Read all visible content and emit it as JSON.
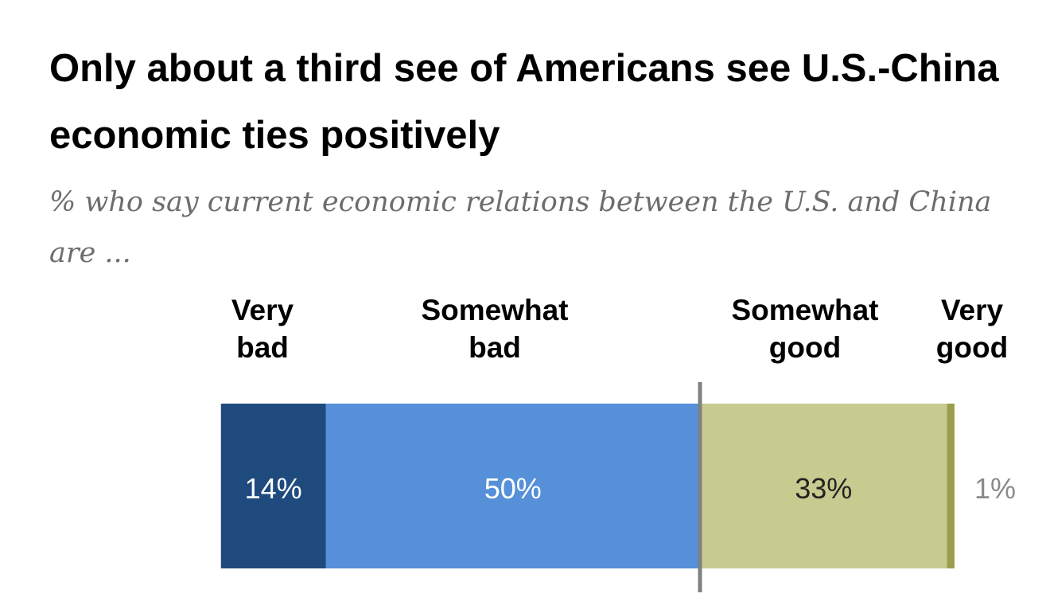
{
  "title": "Only about a third see of Americans see U.S.-China economic ties positively",
  "subtitle": "% who say current economic relations between the U.S. and China are ...",
  "chart_data": {
    "type": "bar",
    "orientation": "horizontal-stacked-diverging",
    "categories": [
      "Very bad",
      "Somewhat bad",
      "Somewhat good",
      "Very good"
    ],
    "category_label_lines": [
      [
        "Very",
        "bad"
      ],
      [
        "Somewhat",
        "bad"
      ],
      [
        "Somewhat",
        "good"
      ],
      [
        "Very",
        "good"
      ]
    ],
    "values": [
      14,
      50,
      33,
      1
    ],
    "value_labels": [
      "14%",
      "50%",
      "33%",
      "1%"
    ],
    "colors": [
      "#1f4a7e",
      "#5590d9",
      "#c8cb8f",
      "#9a9e4e"
    ],
    "value_label_colors": [
      "#ffffff",
      "#ffffff",
      "#222222",
      "#8a8a8a"
    ],
    "center_line_color": "#808080",
    "grid": false
  }
}
